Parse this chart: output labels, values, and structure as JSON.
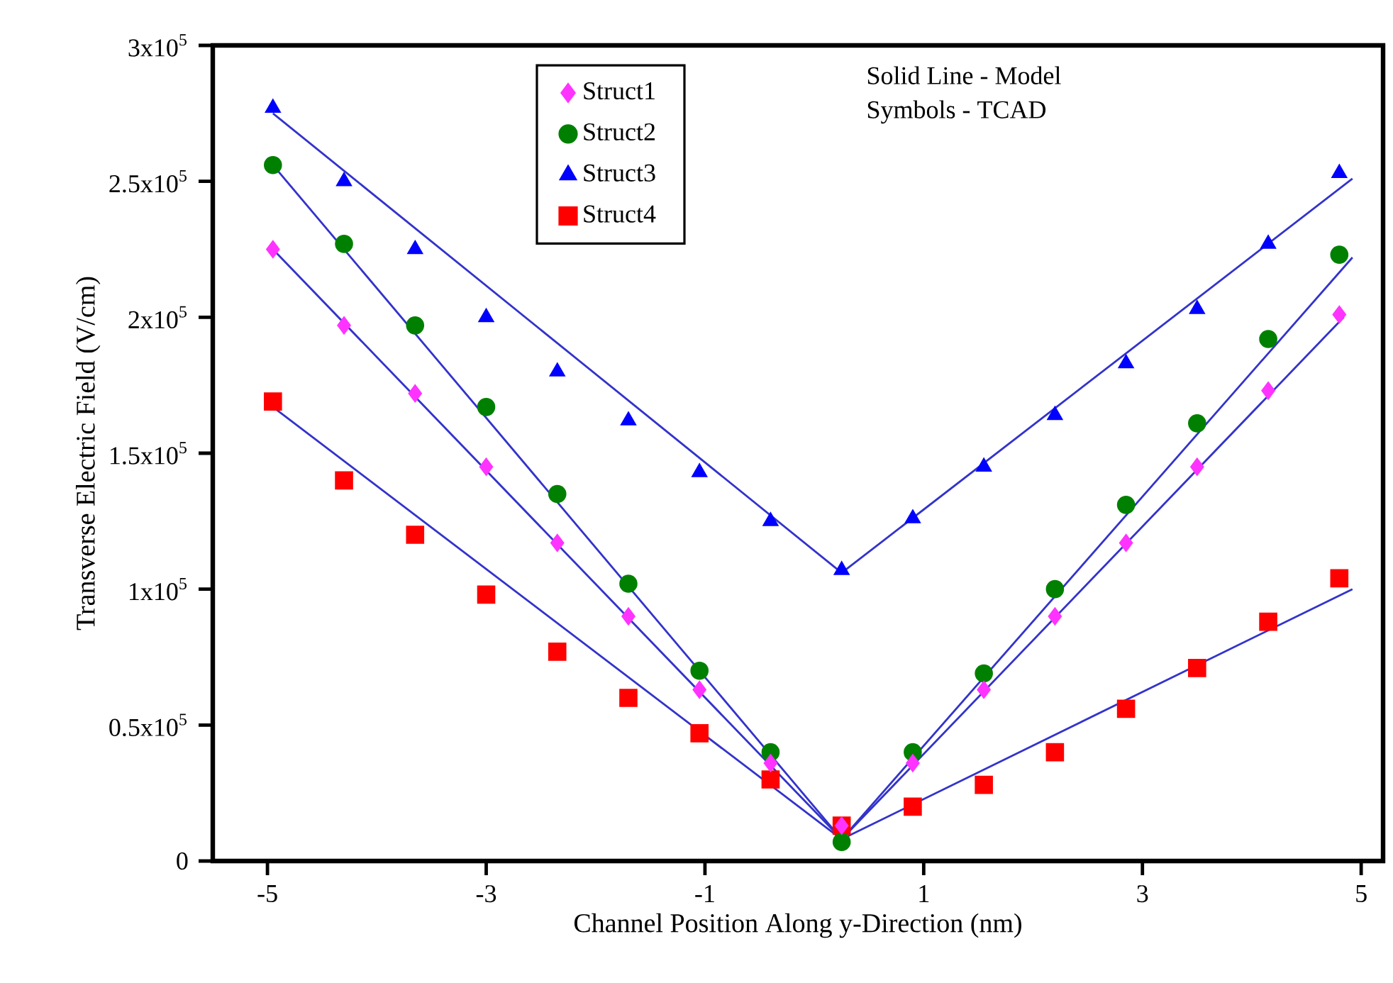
{
  "chart_data": {
    "type": "scatter",
    "xlabel": "Channel Position Along y-Direction (nm)",
    "ylabel": "Transverse Electric Field (V/cm)",
    "annotations": [
      "Solid Line - Model",
      "Symbols - TCAD"
    ],
    "x": [
      -4.95,
      -4.3,
      -3.65,
      -3.0,
      -2.35,
      -1.7,
      -1.05,
      -0.4,
      0.25,
      0.9,
      1.55,
      2.2,
      2.85,
      3.5,
      4.15,
      4.8
    ],
    "xlim": [
      -5.5,
      5.2
    ],
    "xticks": [
      -5,
      -3,
      -1,
      1,
      3,
      5
    ],
    "ylim": [
      0,
      300000
    ],
    "yticks": [
      0,
      {
        "value": 50000,
        "label": "0.5x10$^{5}$"
      },
      {
        "value": 100000,
        "label": "1x10$^{5}$"
      },
      {
        "value": 150000,
        "label": "1.5x10$^{5}$"
      },
      {
        "value": 200000,
        "label": "2x10$^{5}$"
      },
      {
        "value": 250000,
        "label": "2.5x10$^{5}$"
      },
      {
        "value": 300000,
        "label": "3x10$^{5}$"
      }
    ],
    "legend": "top",
    "grid": false,
    "series": [
      {
        "name": "Struct1",
        "color": "#ff33ff",
        "marker": "diamond",
        "values": [
          225000,
          197000,
          172000,
          145000,
          117000,
          90000,
          63000,
          36000,
          13000,
          36000,
          63000,
          90000,
          117000,
          145000,
          173000,
          201000
        ]
      },
      {
        "name": "Struct2",
        "color": "#008000",
        "marker": "circle",
        "values": [
          256000,
          227000,
          197000,
          167000,
          135000,
          102000,
          70000,
          40000,
          7000,
          40000,
          69000,
          100000,
          131000,
          161000,
          192000,
          223000
        ]
      },
      {
        "name": "Struct3",
        "color": "#0000ff",
        "marker": "triangle",
        "values": [
          277000,
          250000,
          225000,
          200000,
          180000,
          162000,
          143000,
          125000,
          107000,
          126000,
          145000,
          164000,
          183000,
          203000,
          227000,
          253000
        ]
      },
      {
        "name": "Struct4",
        "color": "#ff0000",
        "marker": "square",
        "values": [
          169000,
          140000,
          120000,
          98000,
          77000,
          60000,
          47000,
          30000,
          13000,
          20000,
          28000,
          40000,
          56000,
          71000,
          88000,
          104000
        ]
      },
      {
        "type": "line",
        "color": "#3333cc",
        "marker": "none",
        "x": [
          -4.95,
          0.25,
          4.84
        ],
        "values": [
          225000,
          8000,
          200000
        ]
      },
      {
        "type": "line",
        "color": "#3333cc",
        "marker": "none",
        "x": [
          -4.95,
          0.25,
          4.92
        ],
        "values": [
          256000,
          8000,
          222000
        ]
      },
      {
        "type": "line",
        "color": "#3333cc",
        "marker": "none",
        "x": [
          -4.95,
          0.25,
          4.92
        ],
        "values": [
          275000,
          106000,
          251000
        ]
      },
      {
        "type": "line",
        "color": "#3333cc",
        "marker": "none",
        "x": [
          -4.95,
          0.25,
          4.92
        ],
        "values": [
          167000,
          8000,
          100000
        ]
      }
    ]
  }
}
